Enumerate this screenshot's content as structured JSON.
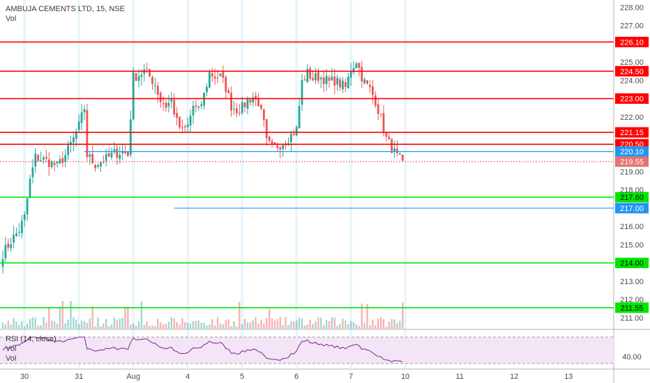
{
  "header": {
    "symbol_line": "AMBUJA CEMENTS LTD, 15, NSE",
    "volume_label": "Vol"
  },
  "rsi_pane": {
    "label": "RSI (14, close)",
    "vol_label": "Vol",
    "axis_tick": "40.00"
  },
  "colors": {
    "up": "#26a69a",
    "down": "#ef5350",
    "resistance": "#ff0000",
    "support": "#00e600",
    "pivot": "#2196f3",
    "rsi_line": "#7b1fa2",
    "rsi_band": "#f3e5f5"
  },
  "chart_data": {
    "type": "candlestick",
    "title": "AMBUJA CEMENTS LTD, 15, NSE",
    "y_axis": {
      "min": 210.4,
      "max": 228.4,
      "side": "right",
      "ticks": [
        211.0,
        212.0,
        213.0,
        214.0,
        215.0,
        216.0,
        217.0,
        218.0,
        219.0,
        220.0,
        221.0,
        222.0,
        223.0,
        224.0,
        225.0,
        226.0,
        227.0,
        228.0
      ]
    },
    "x_axis": {
      "labels": [
        {
          "text": "30",
          "bar": 8
        },
        {
          "text": "31",
          "bar": 28
        },
        {
          "text": "Aug",
          "bar": 48
        },
        {
          "text": "4",
          "bar": 68
        },
        {
          "text": "5",
          "bar": 88
        },
        {
          "text": "6",
          "bar": 108
        },
        {
          "text": "7",
          "bar": 128
        },
        {
          "text": "10",
          "bar": 148
        },
        {
          "text": "11",
          "bar": 168
        },
        {
          "text": "12",
          "bar": 188
        },
        {
          "text": "13",
          "bar": 208
        }
      ],
      "session_markers": [
        8,
        28,
        48,
        68,
        88,
        108,
        128,
        148
      ]
    },
    "levels": [
      {
        "price": 226.1,
        "label": "226.10",
        "kind": "resistance"
      },
      {
        "price": 224.5,
        "label": "224.50",
        "kind": "resistance"
      },
      {
        "price": 223.0,
        "label": "223.00",
        "kind": "resistance"
      },
      {
        "price": 221.15,
        "label": "221.15",
        "kind": "resistance"
      },
      {
        "price": 220.5,
        "label": "220.50",
        "kind": "resistance"
      },
      {
        "price": 220.1,
        "label": "220.10",
        "kind": "pivot",
        "from_bar": 30
      },
      {
        "price": 217.6,
        "label": "217.60",
        "kind": "support"
      },
      {
        "price": 217.0,
        "label": "217.00",
        "kind": "pivot",
        "from_bar": 63
      },
      {
        "price": 214.0,
        "label": "214.00",
        "kind": "support"
      },
      {
        "price": 211.55,
        "label": "211.55",
        "kind": "support"
      }
    ],
    "last_price": {
      "price": 219.55,
      "label": "219.55"
    },
    "rsi_range": [
      20,
      80
    ],
    "close_anchors": [
      [
        0,
        214.5
      ],
      [
        3,
        215.2
      ],
      [
        6,
        215.8
      ],
      [
        8,
        216.5
      ],
      [
        10,
        218.5
      ],
      [
        12,
        219.8
      ],
      [
        16,
        219.6
      ],
      [
        20,
        219.3
      ],
      [
        23,
        219.9
      ],
      [
        26,
        220.8
      ],
      [
        28,
        221.5
      ],
      [
        30,
        222.5
      ],
      [
        31,
        219.9
      ],
      [
        34,
        219.4
      ],
      [
        38,
        219.7
      ],
      [
        41,
        220.0
      ],
      [
        44,
        220.1
      ],
      [
        46,
        219.9
      ],
      [
        48,
        224.2
      ],
      [
        50,
        224.3
      ],
      [
        52,
        224.5
      ],
      [
        54,
        224.2
      ],
      [
        56,
        223.8
      ],
      [
        58,
        222.9
      ],
      [
        60,
        222.6
      ],
      [
        62,
        222.9
      ],
      [
        64,
        221.7
      ],
      [
        66,
        221.2
      ],
      [
        68,
        221.5
      ],
      [
        70,
        222.6
      ],
      [
        72,
        222.3
      ],
      [
        74,
        223.2
      ],
      [
        76,
        224.4
      ],
      [
        78,
        224.2
      ],
      [
        80,
        224.2
      ],
      [
        82,
        223.6
      ],
      [
        84,
        222.6
      ],
      [
        86,
        222.4
      ],
      [
        88,
        222.5
      ],
      [
        90,
        222.9
      ],
      [
        92,
        223.1
      ],
      [
        94,
        222.8
      ],
      [
        96,
        221.6
      ],
      [
        97,
        220.6
      ],
      [
        99,
        220.3
      ],
      [
        102,
        220.5
      ],
      [
        104,
        220.7
      ],
      [
        106,
        221.0
      ],
      [
        108,
        221.3
      ],
      [
        110,
        223.9
      ],
      [
        112,
        224.4
      ],
      [
        114,
        224.1
      ],
      [
        116,
        224.2
      ],
      [
        118,
        224.1
      ],
      [
        120,
        223.9
      ],
      [
        122,
        224.0
      ],
      [
        124,
        223.8
      ],
      [
        126,
        223.6
      ],
      [
        128,
        224.6
      ],
      [
        130,
        225.1
      ],
      [
        132,
        224.2
      ],
      [
        133,
        223.9
      ],
      [
        135,
        223.5
      ],
      [
        137,
        222.9
      ],
      [
        139,
        221.9
      ],
      [
        141,
        220.8
      ],
      [
        143,
        220.3
      ],
      [
        145,
        219.8
      ],
      [
        147,
        219.6
      ]
    ]
  }
}
